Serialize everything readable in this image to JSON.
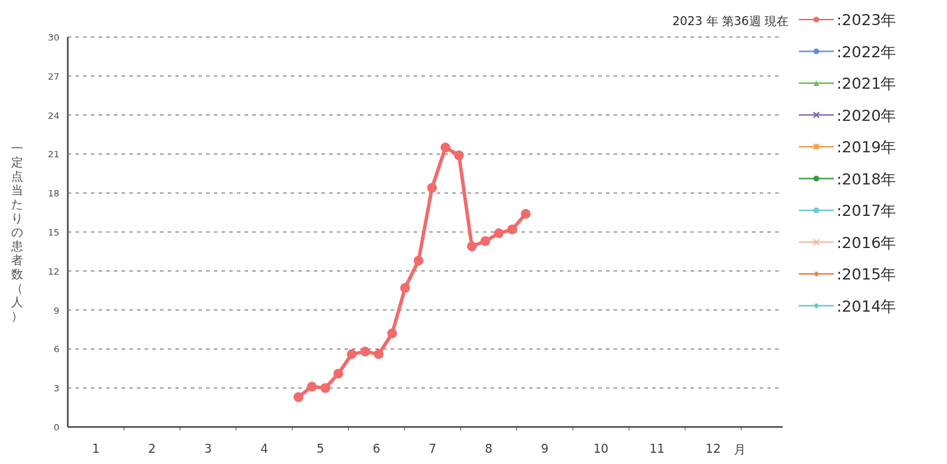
{
  "chart_data": {
    "type": "line",
    "title": "2023 年  第36週  現在",
    "xlabel": "月",
    "ylabel": "一定点当たりの患者数（人）",
    "ylim": [
      0,
      30
    ],
    "yticks": [
      0,
      3,
      6,
      9,
      12,
      15,
      18,
      21,
      24,
      27,
      30
    ],
    "xlim": [
      0.5,
      13.24
    ],
    "xticks": [
      1,
      {
        "value": 1.5,
        "label": null
      },
      2,
      {
        "value": 2.5,
        "label": null
      },
      3,
      {
        "value": 3.5,
        "label": null
      },
      4,
      {
        "value": 4.5,
        "label": null
      },
      5,
      {
        "value": 5.5,
        "label": null
      },
      6,
      {
        "value": 6.5,
        "label": null
      },
      7,
      {
        "value": 7.5,
        "label": null
      },
      8,
      {
        "value": 8.5,
        "label": null
      },
      9,
      {
        "value": 9.5,
        "label": null
      },
      10,
      {
        "value": 10.5,
        "label": null
      },
      11,
      {
        "value": 11.5,
        "label": null
      },
      12,
      {
        "value": 12.5,
        "label": null
      }
    ],
    "grid": "y",
    "legend": "right",
    "line_style": "solid",
    "series": [
      {
        "name": ":2023年",
        "color": "#f26b6b",
        "marker": "circle",
        "x": [
          4.61,
          4.85,
          5.09,
          5.32,
          5.56,
          5.8,
          6.04,
          6.28,
          6.51,
          6.75,
          6.99,
          7.23,
          7.47,
          7.7,
          7.94,
          8.18,
          8.42,
          8.66
        ],
        "values": [
          2.3,
          3.1,
          3.0,
          4.1,
          5.6,
          5.8,
          5.6,
          7.2,
          10.7,
          12.8,
          18.4,
          21.5,
          20.9,
          13.9,
          14.3,
          14.9,
          15.2,
          16.4
        ]
      },
      {
        "name": ":2022年",
        "color": "#5b8fd9",
        "marker": "circle"
      },
      {
        "name": ":2021年",
        "color": "#6cbf50",
        "marker": "triangle"
      },
      {
        "name": ":2020年",
        "color": "#8060b0",
        "marker": "cross"
      },
      {
        "name": ":2019年",
        "color": "#f0a050",
        "marker": "star"
      },
      {
        "name": ":2018年",
        "color": "#3a9a3a",
        "marker": "circle"
      },
      {
        "name": ":2017年",
        "color": "#70c8d8",
        "marker": "circle"
      },
      {
        "name": ":2016年",
        "color": "#f0b8a8",
        "marker": "cross"
      },
      {
        "name": ":2015年",
        "color": "#e08850",
        "marker": "diamond"
      },
      {
        "name": ":2014年",
        "color": "#60c8c0",
        "marker": "diamond"
      }
    ]
  }
}
